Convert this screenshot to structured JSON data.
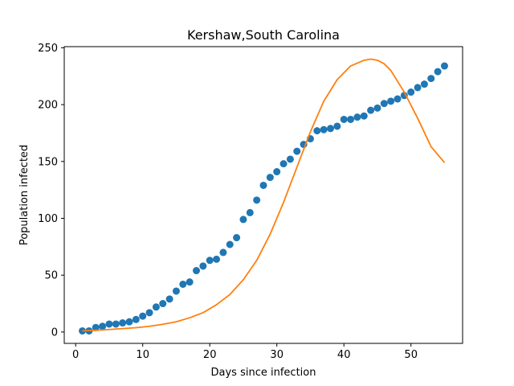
{
  "chart_data": {
    "type": "scatter",
    "title": "Kershaw,South Carolina",
    "xlabel": "Days since infection",
    "ylabel": "Population infected",
    "xlim": [
      -1.7,
      57.7
    ],
    "ylim": [
      -10,
      251
    ],
    "xticks": [
      0,
      10,
      20,
      30,
      40,
      50
    ],
    "yticks": [
      0,
      50,
      100,
      150,
      200,
      250
    ],
    "grid": false,
    "legend": "none",
    "series": [
      {
        "kind": "scatter",
        "color": "#1f77b4",
        "x": [
          1,
          2,
          3,
          4,
          5,
          6,
          7,
          8,
          9,
          10,
          11,
          12,
          13,
          14,
          15,
          16,
          17,
          18,
          19,
          20,
          21,
          22,
          23,
          24,
          25,
          26,
          27,
          28,
          29,
          30,
          31,
          32,
          33,
          34,
          35,
          36,
          37,
          38,
          39,
          40,
          41,
          42,
          43,
          44,
          45,
          46,
          47,
          48,
          49,
          50,
          51,
          52,
          53,
          54,
          55
        ],
        "y": [
          1,
          1,
          4,
          5,
          7,
          7,
          8,
          9,
          11,
          14,
          17,
          22,
          25,
          29,
          36,
          42,
          44,
          54,
          58,
          63,
          64,
          70,
          77,
          83,
          99,
          105,
          116,
          129,
          136,
          141,
          148,
          152,
          159,
          165,
          170,
          177,
          178,
          179,
          181,
          187,
          187,
          189,
          190,
          195,
          197,
          201,
          203,
          205,
          208,
          211,
          215,
          218,
          223,
          229,
          234
        ]
      },
      {
        "kind": "line",
        "color": "#ff7f0e",
        "x": [
          1,
          3,
          5,
          7,
          9,
          11,
          13,
          15,
          17,
          19,
          21,
          23,
          25,
          27,
          29,
          31,
          33,
          35,
          37,
          39,
          41,
          43,
          44,
          45,
          46,
          47,
          49,
          51,
          53,
          55
        ],
        "y": [
          1,
          1.5,
          2.2,
          3,
          3.8,
          5,
          6.8,
          9,
          12.5,
          17,
          24,
          33,
          46,
          63,
          86,
          114,
          145,
          176,
          203,
          222,
          234,
          239,
          240,
          239,
          236,
          230,
          211,
          188,
          163,
          149
        ]
      }
    ]
  }
}
